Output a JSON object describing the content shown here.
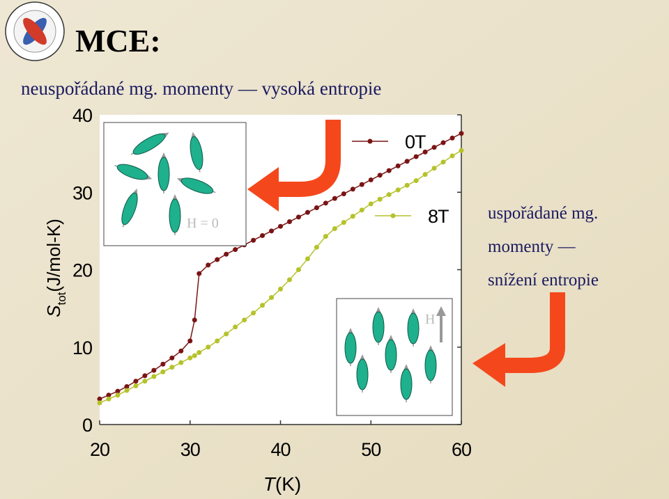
{
  "title": "MCE:",
  "subtitle": "neuspořádané mg. momenty — vysoká entropie",
  "side_note": [
    "uspořádané mg.",
    "momenty —",
    "snížení entropie"
  ],
  "inset_zero_field": "H = 0",
  "inset_field": "H",
  "chart_data": {
    "type": "line",
    "y_label": {
      "symbol": "S",
      "subscript": "tot",
      "unit": "(J/mol-K)"
    },
    "x_label": {
      "symbol": "T",
      "unit": "(K)"
    },
    "x": [
      20,
      21,
      22,
      23,
      24,
      25,
      26,
      27,
      28,
      29,
      30,
      30.5,
      31,
      32,
      33,
      34,
      35,
      36,
      37,
      38,
      39,
      40,
      41,
      42,
      43,
      44,
      45,
      46,
      47,
      48,
      49,
      50,
      51,
      52,
      53,
      54,
      55,
      56,
      57,
      58,
      59,
      60
    ],
    "series": [
      {
        "name": "0T",
        "color": "#7a1414",
        "values": [
          3.3,
          3.8,
          4.3,
          4.9,
          5.6,
          6.3,
          7.0,
          7.8,
          8.6,
          9.5,
          10.8,
          13.5,
          19.5,
          20.6,
          21.3,
          22.0,
          22.6,
          23.2,
          23.8,
          24.4,
          25.0,
          25.6,
          26.2,
          26.8,
          27.4,
          28.0,
          28.6,
          29.2,
          29.8,
          30.4,
          31.0,
          31.6,
          32.2,
          32.8,
          33.4,
          34.0,
          34.6,
          35.2,
          35.8,
          36.4,
          37.0,
          37.6
        ]
      },
      {
        "name": "8T",
        "color": "#b5c22a",
        "values": [
          2.8,
          3.3,
          3.8,
          4.4,
          5.0,
          5.6,
          6.2,
          6.8,
          7.4,
          8.0,
          8.6,
          8.9,
          9.3,
          10.0,
          10.8,
          11.7,
          12.6,
          13.5,
          14.4,
          15.4,
          16.4,
          17.5,
          18.7,
          20.0,
          21.4,
          22.9,
          24.3,
          25.3,
          26.1,
          26.9,
          27.7,
          28.5,
          29.1,
          29.7,
          30.3,
          30.9,
          31.5,
          32.3,
          33.1,
          33.9,
          34.7,
          35.4
        ]
      }
    ],
    "xlim": [
      20,
      60
    ],
    "ylim": [
      0,
      40
    ],
    "xticks": [
      20,
      30,
      40,
      50,
      60
    ],
    "yticks": [
      0,
      10,
      20,
      30,
      40
    ]
  }
}
